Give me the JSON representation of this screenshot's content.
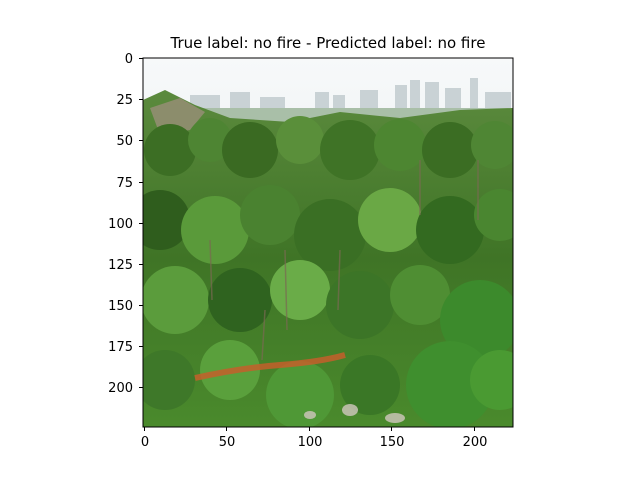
{
  "title": "True label: no fire - Predicted label: no fire",
  "image_description": "Aerial view of green forested hillside with city skyline in hazy background",
  "axes": {
    "x_ticks": [
      "0",
      "50",
      "100",
      "150",
      "200"
    ],
    "y_ticks": [
      "0",
      "25",
      "50",
      "75",
      "100",
      "125",
      "150",
      "175",
      "200"
    ]
  },
  "colors": {
    "sky": "#eef3f4",
    "city_haze": "#c7d3d6",
    "foliage_dark": "#2f5d20",
    "foliage_mid": "#4f8a32",
    "foliage_light": "#8cbc55",
    "path": "#c45f2a"
  }
}
